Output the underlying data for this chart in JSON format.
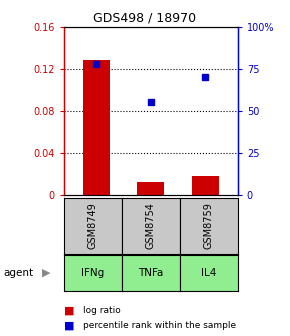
{
  "title": "GDS498 / 18970",
  "samples": [
    "GSM8749",
    "GSM8754",
    "GSM8759"
  ],
  "agents": [
    "IFNg",
    "TNFa",
    "IL4"
  ],
  "log_ratios": [
    0.128,
    0.012,
    0.018
  ],
  "percentile_ranks": [
    78,
    55,
    70
  ],
  "ylim_left": [
    0,
    0.16
  ],
  "ylim_right": [
    0,
    100
  ],
  "yticks_left": [
    0,
    0.04,
    0.08,
    0.12,
    0.16
  ],
  "ytick_labels_left": [
    "0",
    "0.04",
    "0.08",
    "0.12",
    "0.16"
  ],
  "yticks_right": [
    0,
    25,
    50,
    75,
    100
  ],
  "ytick_labels_right": [
    "0",
    "25",
    "50",
    "75",
    "100%"
  ],
  "bar_color": "#cc0000",
  "dot_color": "#0000cc",
  "sample_box_color": "#c8c8c8",
  "agent_box_color": "#90ee90",
  "bar_width": 0.5,
  "legend_bar_label": "log ratio",
  "legend_dot_label": "percentile rank within the sample",
  "agent_label": "agent"
}
